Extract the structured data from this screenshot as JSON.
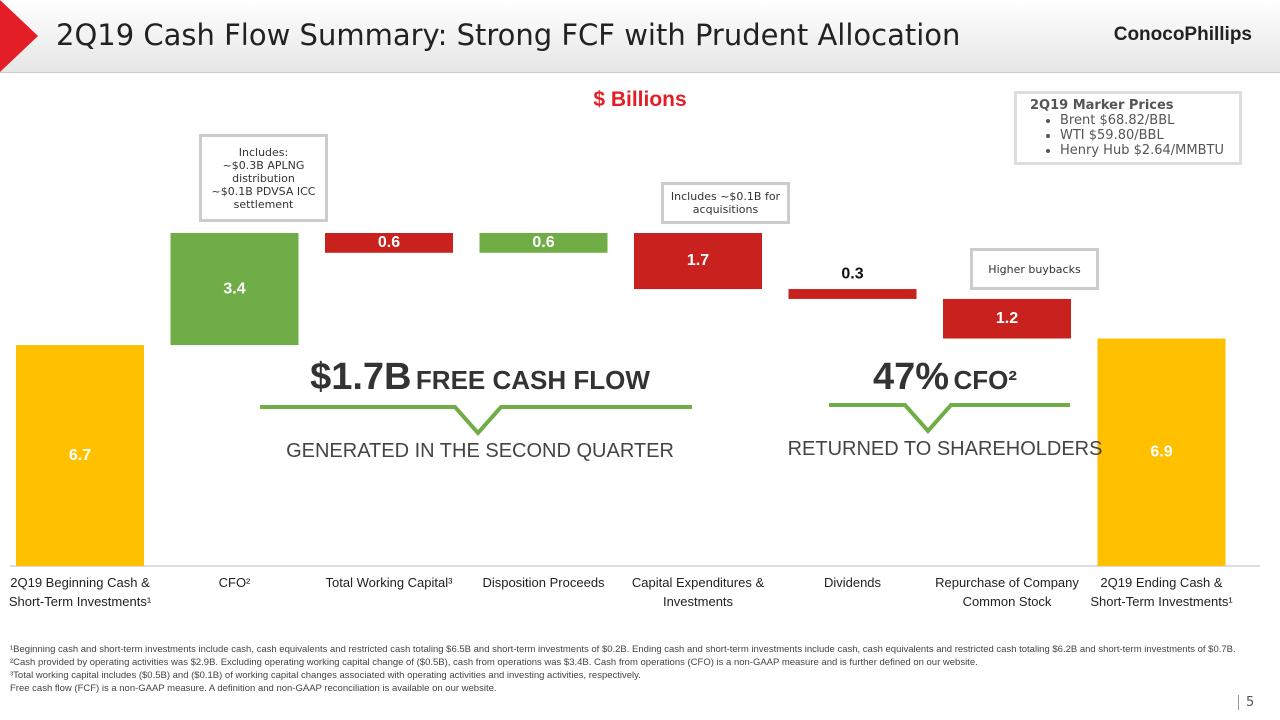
{
  "header": {
    "title": "2Q19 Cash Flow Summary: Strong FCF with Prudent Allocation",
    "logo": "ConocoPhillips",
    "page": "5"
  },
  "marker_prices": {
    "title": "2Q19 Marker Prices",
    "items": [
      "Brent $68.82/BBL",
      "WTI $59.80/BBL",
      "Henry Hub $2.64/MMBTU"
    ]
  },
  "chart_data": {
    "type": "waterfall",
    "subtitle": "$ Billions",
    "categories": [
      "2Q19 Beginning Cash & Short-Term Investments¹",
      "CFO²",
      "Total Working Capital³",
      "Disposition Proceeds",
      "Capital Expenditures & Investments",
      "Dividends",
      "Repurchase of Company Common Stock",
      "2Q19 Ending Cash & Short-Term Investments¹"
    ],
    "values": [
      6.7,
      3.4,
      -0.6,
      0.6,
      -1.7,
      -0.3,
      -1.2,
      6.9
    ],
    "value_labels": [
      "6.7",
      "3.4",
      "0.6",
      "0.6",
      "1.7",
      "0.3",
      "1.2",
      "6.9"
    ],
    "colors": [
      "#ffc000",
      "#70ad47",
      "#c9211e",
      "#70ad47",
      "#c9211e",
      "#c9211e",
      "#c9211e",
      "#ffc000"
    ],
    "annotations": [
      "Includes:\n~$0.3B APLNG distribution\n~$0.1B PDVSA ICC settlement",
      "Includes ~$0.1B for acquisitions",
      "Higher buybacks"
    ]
  },
  "highlights": [
    {
      "figure": "$1.7B",
      "label": "FREE CASH FLOW",
      "caption": "GENERATED IN THE SECOND QUARTER"
    },
    {
      "figure": "47%",
      "label": "CFO²",
      "caption": "RETURNED TO SHAREHOLDERS"
    }
  ],
  "footnotes": [
    "¹Beginning cash and short-term investments include cash, cash equivalents and restricted cash totaling $6.5B and short-term investments of $0.2B. Ending cash and short-term investments include cash, cash equivalents and restricted cash totaling $6.2B and short-term investments of $0.7B.",
    "²Cash provided by operating activities was $2.9B. Excluding operating working capital change of ($0.5B), cash from operations was $3.4B. Cash from operations (CFO) is a non-GAAP measure and is further defined on our website.",
    "³Total working capital includes ($0.5B) and ($0.1B) of working capital changes associated with operating activities and investing activities, respectively.",
    "Free cash flow (FCF) is a non-GAAP measure. A definition and non-GAAP reconciliation is available on our website."
  ]
}
